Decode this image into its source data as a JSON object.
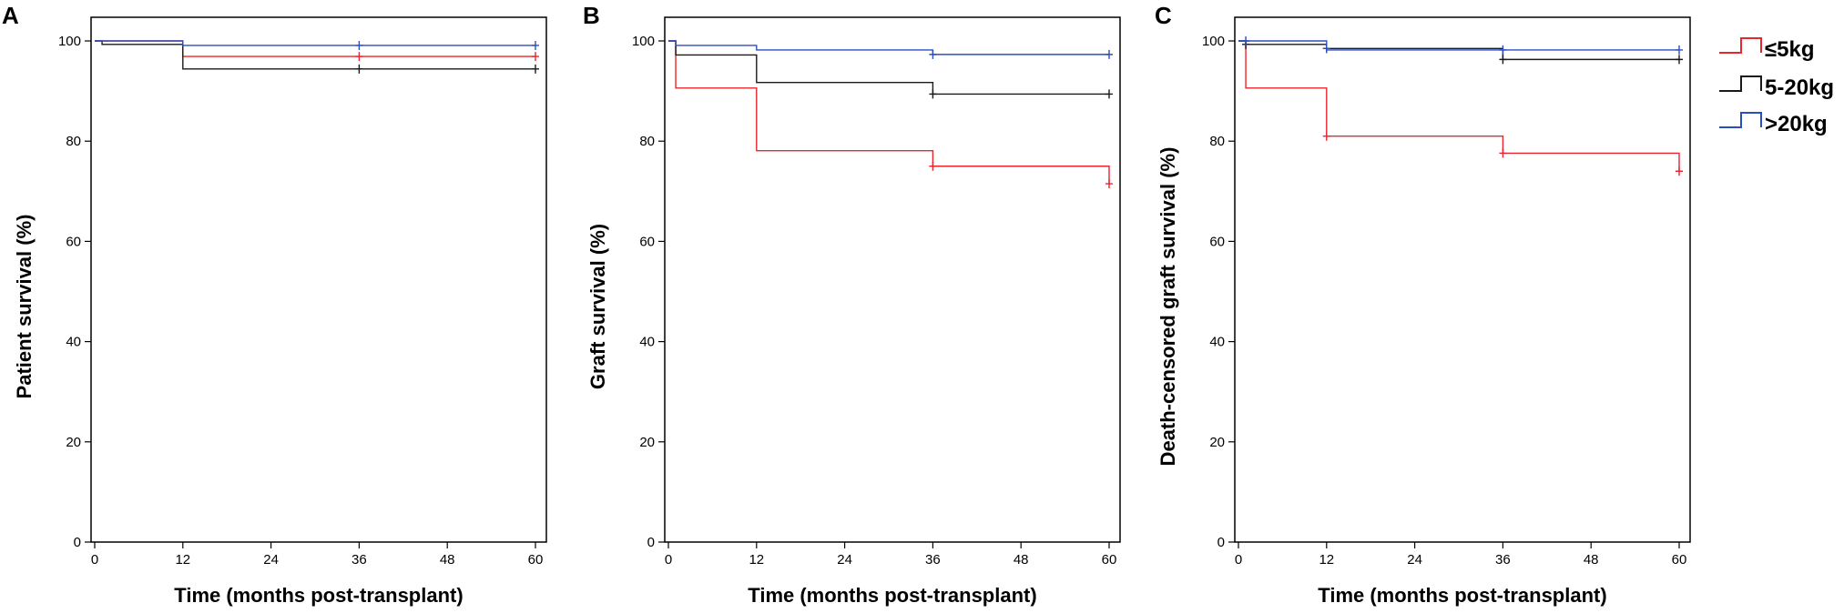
{
  "chart_data": [
    {
      "type": "line",
      "panel": "A",
      "xlabel": "Time (months post-transplant)",
      "ylabel": "Patient survival (%)",
      "xlim": [
        0,
        60
      ],
      "ylim": [
        0,
        100
      ],
      "xticks": [
        "0",
        "12",
        "24",
        "36",
        "48",
        "60"
      ],
      "yticks": [
        "0",
        "20",
        "40",
        "60",
        "80",
        "100"
      ],
      "series": [
        {
          "name": "≤5kg",
          "color": "#e8262d",
          "steps": [
            [
              0,
              100
            ],
            [
              12,
              96.9
            ],
            [
              60,
              96.9
            ]
          ],
          "censored": [
            [
              36,
              96.9
            ],
            [
              60,
              96.9
            ]
          ]
        },
        {
          "name": "5-20kg",
          "color": "#1a1a1a",
          "steps": [
            [
              0,
              100
            ],
            [
              1,
              99.3
            ],
            [
              12,
              94.4
            ],
            [
              60,
              94.4
            ]
          ],
          "censored": [
            [
              36,
              94.4
            ],
            [
              60,
              94.4
            ]
          ]
        },
        {
          "name": ">20kg",
          "color": "#2b4fc0",
          "steps": [
            [
              0,
              100
            ],
            [
              12,
              99.1
            ],
            [
              60,
              99.1
            ]
          ],
          "censored": [
            [
              36,
              99.1
            ],
            [
              60,
              99.1
            ]
          ]
        }
      ]
    },
    {
      "type": "line",
      "panel": "B",
      "xlabel": "Time (months post-transplant)",
      "ylabel": "Graft survival (%)",
      "xlim": [
        0,
        60
      ],
      "ylim": [
        0,
        100
      ],
      "xticks": [
        "0",
        "12",
        "24",
        "36",
        "48",
        "60"
      ],
      "yticks": [
        "0",
        "20",
        "40",
        "60",
        "80",
        "100"
      ],
      "series": [
        {
          "name": "≤5kg",
          "color": "#e8262d",
          "steps": [
            [
              0,
              100
            ],
            [
              1,
              90.6
            ],
            [
              12,
              78.1
            ],
            [
              36,
              75.0
            ],
            [
              60,
              71.5
            ]
          ],
          "censored": [
            [
              36,
              75.0
            ],
            [
              60,
              71.5
            ]
          ]
        },
        {
          "name": "5-20kg",
          "color": "#1a1a1a",
          "steps": [
            [
              0,
              100
            ],
            [
              1,
              97.2
            ],
            [
              12,
              91.7
            ],
            [
              36,
              89.4
            ],
            [
              60,
              89.4
            ]
          ],
          "censored": [
            [
              36,
              89.4
            ],
            [
              60,
              89.4
            ]
          ]
        },
        {
          "name": ">20kg",
          "color": "#2b4fc0",
          "steps": [
            [
              0,
              100
            ],
            [
              1,
              99.1
            ],
            [
              12,
              98.2
            ],
            [
              36,
              97.3
            ],
            [
              60,
              97.3
            ]
          ],
          "censored": [
            [
              36,
              97.3
            ],
            [
              60,
              97.3
            ]
          ]
        }
      ]
    },
    {
      "type": "line",
      "panel": "C",
      "xlabel": "Time (months post-transplant)",
      "ylabel": "Death-censored graft survival (%)",
      "xlim": [
        0,
        60
      ],
      "ylim": [
        0,
        100
      ],
      "xticks": [
        "0",
        "12",
        "24",
        "36",
        "48",
        "60"
      ],
      "yticks": [
        "0",
        "20",
        "40",
        "60",
        "80",
        "100"
      ],
      "series": [
        {
          "name": "≤5kg",
          "color": "#e8262d",
          "steps": [
            [
              0,
              100
            ],
            [
              1,
              90.6
            ],
            [
              12,
              81.0
            ],
            [
              36,
              77.6
            ],
            [
              60,
              74.0
            ]
          ],
          "censored": [
            [
              12,
              81.0
            ],
            [
              36,
              77.6
            ],
            [
              60,
              74.0
            ]
          ]
        },
        {
          "name": "5-20kg",
          "color": "#1a1a1a",
          "steps": [
            [
              0,
              100
            ],
            [
              1,
              99.3
            ],
            [
              12,
              98.5
            ],
            [
              36,
              96.3
            ],
            [
              60,
              96.3
            ]
          ],
          "censored": [
            [
              1,
              99.3
            ],
            [
              12,
              98.5
            ],
            [
              36,
              96.3
            ],
            [
              60,
              96.3
            ]
          ]
        },
        {
          "name": ">20kg",
          "color": "#2b4fc0",
          "steps": [
            [
              0,
              100
            ],
            [
              12,
              98.2
            ],
            [
              60,
              98.2
            ]
          ],
          "censored": [
            [
              1,
              100
            ],
            [
              12,
              98.5
            ],
            [
              36,
              98.2
            ],
            [
              60,
              98.2
            ]
          ]
        }
      ]
    }
  ],
  "legend": [
    {
      "label": "≤5kg",
      "color": "#e8262d"
    },
    {
      "label": "5-20kg",
      "color": "#1a1a1a"
    },
    {
      "label": ">20kg",
      "color": "#2b4fc0"
    }
  ]
}
